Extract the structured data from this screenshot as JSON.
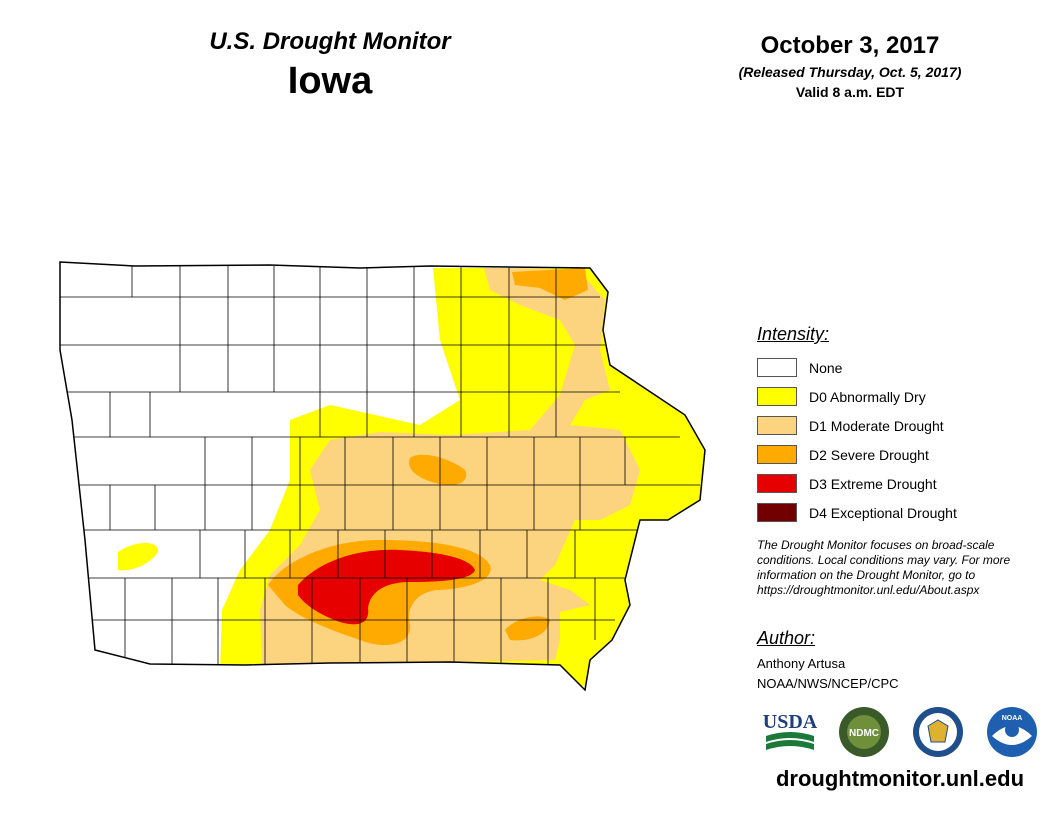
{
  "header": {
    "product_title": "U.S. Drought Monitor",
    "state": "Iowa",
    "date": "October 3, 2017",
    "released": "(Released Thursday, Oct. 5, 2017)",
    "valid": "Valid 8 a.m. EDT"
  },
  "legend": {
    "heading": "Intensity:",
    "items": [
      {
        "label": "None",
        "color": "#ffffff"
      },
      {
        "label": "D0 Abnormally Dry",
        "color": "#ffff00"
      },
      {
        "label": "D1 Moderate Drought",
        "color": "#fcd37f"
      },
      {
        "label": "D2 Severe Drought",
        "color": "#ffaa00"
      },
      {
        "label": "D3 Extreme Drought",
        "color": "#e60000"
      },
      {
        "label": "D4 Exceptional Drought",
        "color": "#730000"
      }
    ]
  },
  "disclaimer": "The Drought Monitor focuses on broad-scale conditions. Local conditions may vary. For more information on the Drought Monitor, go to https://droughtmonitor.unl.edu/About.aspx",
  "author": {
    "heading": "Author:",
    "name": "Anthony Artusa",
    "org": "NOAA/NWS/NCEP/CPC"
  },
  "logos": {
    "usda": "USDA",
    "ndmc": "NDMC",
    "noaa": "NOAA"
  },
  "website": "droughtmonitor.unl.edu"
}
